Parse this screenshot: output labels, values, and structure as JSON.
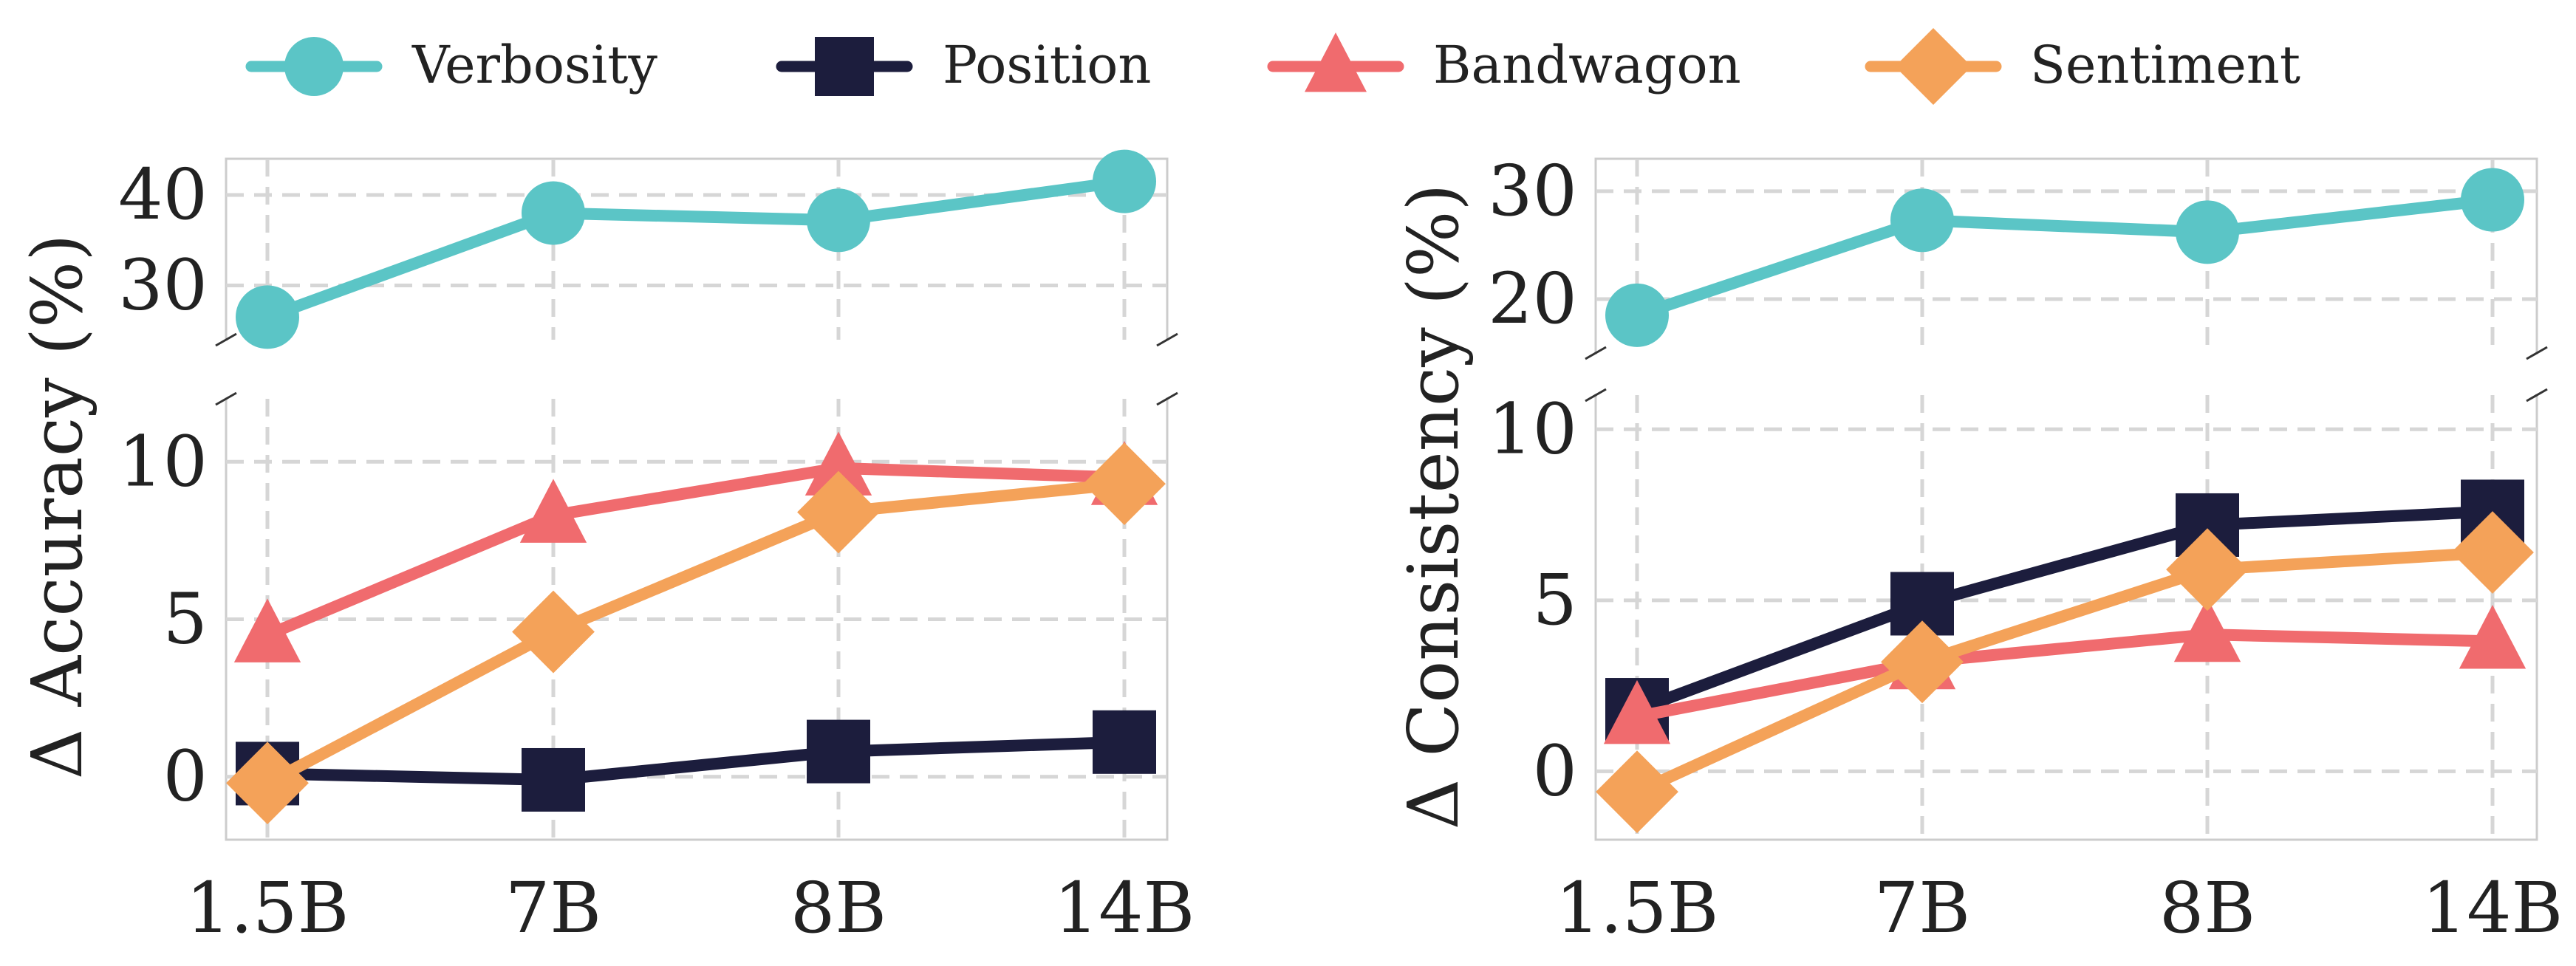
{
  "colors": {
    "verbosity": "#5bc5c6",
    "position": "#1c1d3d",
    "bandwagon": "#f06b6e",
    "sentiment": "#f4a259",
    "grid": "#d6d6d6",
    "frame": "#cccccc"
  },
  "legend": [
    {
      "key": "verbosity",
      "label": "Verbosity",
      "marker": "circle"
    },
    {
      "key": "position",
      "label": "Position",
      "marker": "square"
    },
    {
      "key": "bandwagon",
      "label": "Bandwagon",
      "marker": "triangle"
    },
    {
      "key": "sentiment",
      "label": "Sentiment",
      "marker": "diamond"
    }
  ],
  "chart_data": [
    {
      "type": "line",
      "title": "",
      "xlabel": "",
      "ylabel": "Δ Accuracy (%)",
      "categories": [
        "1.5B",
        "7B",
        "8B",
        "14B"
      ],
      "broken_axis": true,
      "upper_ylim": [
        24,
        44
      ],
      "upper_yticks": [
        "30",
        "40"
      ],
      "lower_ylim": [
        -2,
        12
      ],
      "lower_yticks": [
        "0",
        "5",
        "10"
      ],
      "series": [
        {
          "name": "Verbosity",
          "key": "verbosity",
          "values": [
            26.5,
            38.0,
            37.2,
            41.5
          ]
        },
        {
          "name": "Position",
          "key": "position",
          "values": [
            0.1,
            -0.1,
            0.8,
            1.1
          ]
        },
        {
          "name": "Bandwagon",
          "key": "bandwagon",
          "values": [
            4.5,
            8.3,
            9.8,
            9.5
          ]
        },
        {
          "name": "Sentiment",
          "key": "sentiment",
          "values": [
            -0.2,
            4.6,
            8.4,
            9.3
          ]
        }
      ]
    },
    {
      "type": "line",
      "title": "",
      "xlabel": "",
      "ylabel": "Δ Consistency (%)",
      "categories": [
        "1.5B",
        "7B",
        "8B",
        "14B"
      ],
      "broken_axis": true,
      "upper_ylim": [
        15,
        33
      ],
      "upper_yticks": [
        "20",
        "30"
      ],
      "lower_ylim": [
        -2,
        11
      ],
      "lower_yticks": [
        "0",
        "5",
        "10"
      ],
      "series": [
        {
          "name": "Verbosity",
          "key": "verbosity",
          "values": [
            18.5,
            27.3,
            26.2,
            29.2
          ]
        },
        {
          "name": "Position",
          "key": "position",
          "values": [
            1.8,
            4.9,
            7.2,
            7.6
          ]
        },
        {
          "name": "Bandwagon",
          "key": "bandwagon",
          "values": [
            1.6,
            3.2,
            4.0,
            3.8
          ]
        },
        {
          "name": "Sentiment",
          "key": "sentiment",
          "values": [
            -0.6,
            3.2,
            5.9,
            6.4
          ]
        }
      ]
    }
  ]
}
